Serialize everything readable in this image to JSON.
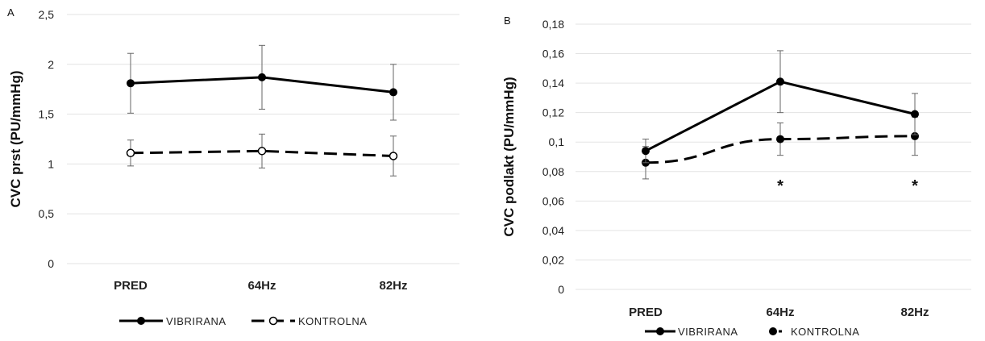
{
  "chart_data": [
    {
      "panel": "A",
      "type": "line",
      "ylabel": "CVC prst (PU/mmHg)",
      "xlabel": "",
      "categories": [
        "PRED",
        "64Hz",
        "82Hz"
      ],
      "ylim": [
        0,
        2.5
      ],
      "yticks": [
        "0",
        "0,5",
        "1",
        "1,5",
        "2",
        "2,5"
      ],
      "grid": true,
      "legend_position": "bottom",
      "series": [
        {
          "name": "VIBRIRANA",
          "values": [
            1.81,
            1.87,
            1.72
          ],
          "error": [
            0.3,
            0.32,
            0.28
          ],
          "line_style": "solid",
          "marker": "filled-circle",
          "color": "#000000"
        },
        {
          "name": "KONTROLNA",
          "values": [
            1.11,
            1.13,
            1.08
          ],
          "error": [
            0.13,
            0.17,
            0.2
          ],
          "line_style": "dashed",
          "marker": "open-circle",
          "color": "#000000"
        }
      ],
      "annotations": []
    },
    {
      "panel": "B",
      "type": "line",
      "ylabel": "CVC podlakt (PU/mmHg)",
      "xlabel": "",
      "categories": [
        "PRED",
        "64Hz",
        "82Hz"
      ],
      "ylim": [
        0,
        0.18
      ],
      "yticks": [
        "0",
        "0,02",
        "0,04",
        "0,06",
        "0,08",
        "0,1",
        "0,12",
        "0,14",
        "0,16",
        "0,18"
      ],
      "grid": true,
      "legend_position": "bottom",
      "series": [
        {
          "name": "VIBRIRANA",
          "values": [
            0.094,
            0.141,
            0.119
          ],
          "error": [
            0.008,
            0.021,
            0.014
          ],
          "line_style": "solid",
          "marker": "filled-circle",
          "color": "#000000"
        },
        {
          "name": "KONTROLNA",
          "values": [
            0.086,
            0.102,
            0.104
          ],
          "error": [
            0.011,
            0.011,
            0.013
          ],
          "line_style": "dashed",
          "marker": "filled-circle",
          "color": "#000000"
        }
      ],
      "annotations": [
        {
          "category": "64Hz",
          "text": "*"
        },
        {
          "category": "82Hz",
          "text": "*"
        }
      ]
    }
  ]
}
